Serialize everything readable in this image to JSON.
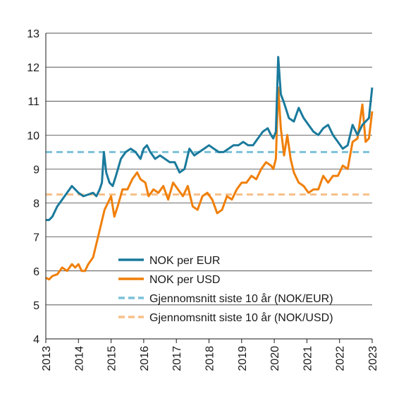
{
  "chart_data": {
    "type": "line",
    "title": "",
    "xlabel": "",
    "ylabel": "",
    "xlim": [
      2013,
      2023
    ],
    "ylim": [
      4,
      13
    ],
    "x_ticks": [
      "2013",
      "2014",
      "2015",
      "2016",
      "2017",
      "2018",
      "2019",
      "2020",
      "2021",
      "2022",
      "2023"
    ],
    "y_ticks": [
      "4",
      "5",
      "6",
      "7",
      "8",
      "9",
      "10",
      "11",
      "12",
      "13"
    ],
    "grid": "horizontal",
    "legend_position": "lower-right",
    "series": [
      {
        "name": "NOK per EUR",
        "color": "#1a7a9c",
        "style": "solid",
        "x": [
          2013.0,
          2013.1,
          2013.2,
          2013.35,
          2013.5,
          2013.65,
          2013.8,
          2013.9,
          2014.0,
          2014.15,
          2014.3,
          2014.45,
          2014.55,
          2014.65,
          2014.72,
          2014.78,
          2014.85,
          2014.95,
          2015.05,
          2015.15,
          2015.3,
          2015.45,
          2015.6,
          2015.75,
          2015.9,
          2016.0,
          2016.1,
          2016.2,
          2016.35,
          2016.5,
          2016.65,
          2016.8,
          2016.95,
          2017.1,
          2017.25,
          2017.4,
          2017.55,
          2017.7,
          2017.85,
          2018.0,
          2018.15,
          2018.3,
          2018.45,
          2018.6,
          2018.75,
          2018.9,
          2019.05,
          2019.2,
          2019.35,
          2019.5,
          2019.65,
          2019.8,
          2019.9,
          2019.97,
          2020.05,
          2020.12,
          2020.2,
          2020.28,
          2020.35,
          2020.45,
          2020.6,
          2020.75,
          2020.9,
          2021.05,
          2021.2,
          2021.35,
          2021.5,
          2021.65,
          2021.8,
          2021.95,
          2022.1,
          2022.25,
          2022.4,
          2022.55,
          2022.7,
          2022.8,
          2022.9,
          2023.0
        ],
        "y": [
          7.5,
          7.5,
          7.6,
          7.9,
          8.1,
          8.3,
          8.5,
          8.4,
          8.3,
          8.2,
          8.25,
          8.3,
          8.2,
          8.4,
          8.6,
          9.5,
          8.9,
          8.6,
          8.5,
          8.8,
          9.3,
          9.5,
          9.6,
          9.5,
          9.3,
          9.6,
          9.7,
          9.5,
          9.3,
          9.4,
          9.3,
          9.2,
          9.2,
          8.9,
          9.0,
          9.6,
          9.4,
          9.5,
          9.6,
          9.7,
          9.6,
          9.5,
          9.5,
          9.6,
          9.7,
          9.7,
          9.8,
          9.7,
          9.7,
          9.9,
          10.1,
          10.2,
          10.0,
          9.9,
          10.1,
          12.3,
          11.2,
          11.0,
          10.8,
          10.5,
          10.4,
          10.8,
          10.5,
          10.3,
          10.1,
          10.0,
          10.2,
          10.3,
          10.0,
          9.8,
          9.6,
          9.7,
          10.3,
          10.0,
          10.3,
          10.4,
          10.5,
          11.4
        ]
      },
      {
        "name": "NOK per USD",
        "color": "#f07f09",
        "style": "solid",
        "x": [
          2013.0,
          2013.1,
          2013.2,
          2013.35,
          2013.5,
          2013.65,
          2013.8,
          2013.9,
          2014.0,
          2014.1,
          2014.2,
          2014.3,
          2014.45,
          2014.6,
          2014.7,
          2014.8,
          2014.9,
          2015.0,
          2015.1,
          2015.2,
          2015.35,
          2015.5,
          2015.65,
          2015.8,
          2015.9,
          2016.05,
          2016.15,
          2016.3,
          2016.45,
          2016.6,
          2016.75,
          2016.9,
          2017.05,
          2017.2,
          2017.35,
          2017.5,
          2017.65,
          2017.8,
          2017.95,
          2018.1,
          2018.25,
          2018.4,
          2018.55,
          2018.7,
          2018.85,
          2019.0,
          2019.15,
          2019.3,
          2019.45,
          2019.6,
          2019.75,
          2019.9,
          2019.97,
          2020.05,
          2020.12,
          2020.2,
          2020.3,
          2020.4,
          2020.5,
          2020.6,
          2020.75,
          2020.9,
          2021.05,
          2021.2,
          2021.35,
          2021.5,
          2021.65,
          2021.8,
          2021.95,
          2022.1,
          2022.25,
          2022.4,
          2022.55,
          2022.7,
          2022.8,
          2022.9,
          2023.0
        ],
        "y": [
          5.8,
          5.75,
          5.85,
          5.9,
          6.1,
          6.0,
          6.2,
          6.1,
          6.2,
          6.0,
          6.0,
          6.2,
          6.4,
          7.0,
          7.4,
          7.8,
          8.0,
          8.2,
          7.6,
          7.9,
          8.4,
          8.4,
          8.7,
          8.9,
          8.7,
          8.6,
          8.2,
          8.4,
          8.3,
          8.5,
          8.1,
          8.6,
          8.4,
          8.2,
          8.5,
          7.9,
          7.8,
          8.2,
          8.3,
          8.1,
          7.7,
          7.8,
          8.2,
          8.1,
          8.4,
          8.6,
          8.6,
          8.8,
          8.7,
          9.0,
          9.2,
          9.1,
          9.0,
          9.3,
          11.4,
          10.2,
          9.4,
          10.0,
          9.3,
          8.9,
          8.6,
          8.5,
          8.3,
          8.4,
          8.4,
          8.8,
          8.6,
          8.8,
          8.8,
          9.1,
          9.0,
          9.8,
          9.9,
          10.9,
          9.8,
          9.9,
          10.7
        ]
      },
      {
        "name": "Gjennomsnitt siste 10 år (NOK/EUR)",
        "color": "#7cc1d9",
        "style": "dashed",
        "x": [
          2013,
          2023
        ],
        "y": [
          9.5,
          9.5
        ]
      },
      {
        "name": "Gjennomsnitt siste 10 år (NOK/USD)",
        "color": "#f7c08a",
        "style": "dashed",
        "x": [
          2013,
          2023
        ],
        "y": [
          8.25,
          8.25
        ]
      }
    ]
  }
}
